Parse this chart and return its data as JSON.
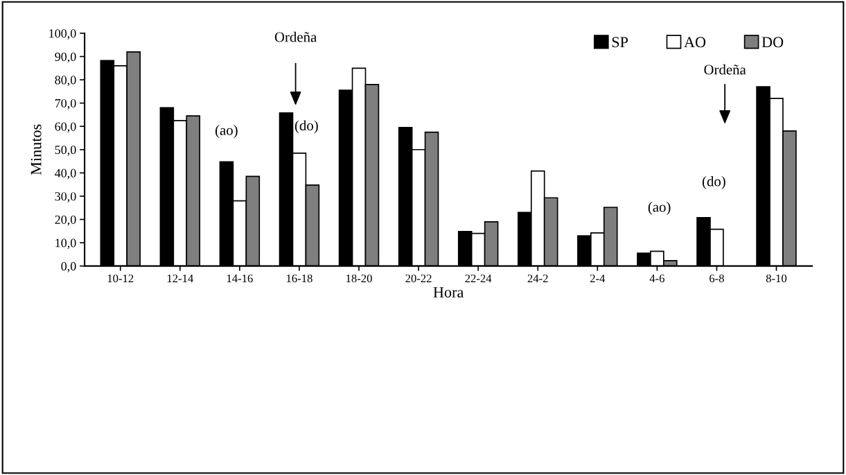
{
  "chart_data": {
    "type": "bar",
    "xlabel": "Hora",
    "ylabel": "Minutos",
    "categories": [
      "10-12",
      "12-14",
      "14-16",
      "16-18",
      "18-20",
      "20-22",
      "22-24",
      "24-2",
      "2-4",
      "4-6",
      "6-8",
      "8-10"
    ],
    "series": [
      {
        "name": "SP",
        "color": "#000000",
        "values": [
          88.3,
          68.0,
          44.8,
          65.8,
          75.5,
          59.5,
          14.8,
          23.0,
          13.0,
          5.5,
          20.8,
          77.0
        ]
      },
      {
        "name": "AO",
        "color": "#ffffff",
        "values": [
          86.0,
          62.5,
          28.0,
          48.5,
          85.0,
          50.0,
          14.0,
          40.8,
          14.2,
          6.3,
          15.8,
          72.0
        ]
      },
      {
        "name": "DO",
        "color": "#7f7f7f",
        "values": [
          92.0,
          64.5,
          38.5,
          34.8,
          78.0,
          57.5,
          19.0,
          29.3,
          25.2,
          2.3,
          null,
          58.0
        ]
      }
    ],
    "ylim": [
      0,
      100
    ],
    "yticks": [
      {
        "value": 0,
        "label": "0,0"
      },
      {
        "value": 10,
        "label": "10,0"
      },
      {
        "value": 20,
        "label": "20,0"
      },
      {
        "value": 30,
        "label": "30,0"
      },
      {
        "value": 40,
        "label": "40,0"
      },
      {
        "value": 50,
        "label": "50,0"
      },
      {
        "value": 60,
        "label": "60,0"
      },
      {
        "value": 70,
        "label": "70,0"
      },
      {
        "value": 80,
        "label": "80,0"
      },
      {
        "value": 90,
        "label": "90,0"
      },
      {
        "value": 100,
        "label": "100,0"
      }
    ],
    "annotations": [
      "Ordeña",
      "(ao)",
      "(do)",
      "Ordeña",
      "(ao)",
      "(do)"
    ],
    "legend": "top right",
    "grid": false
  }
}
